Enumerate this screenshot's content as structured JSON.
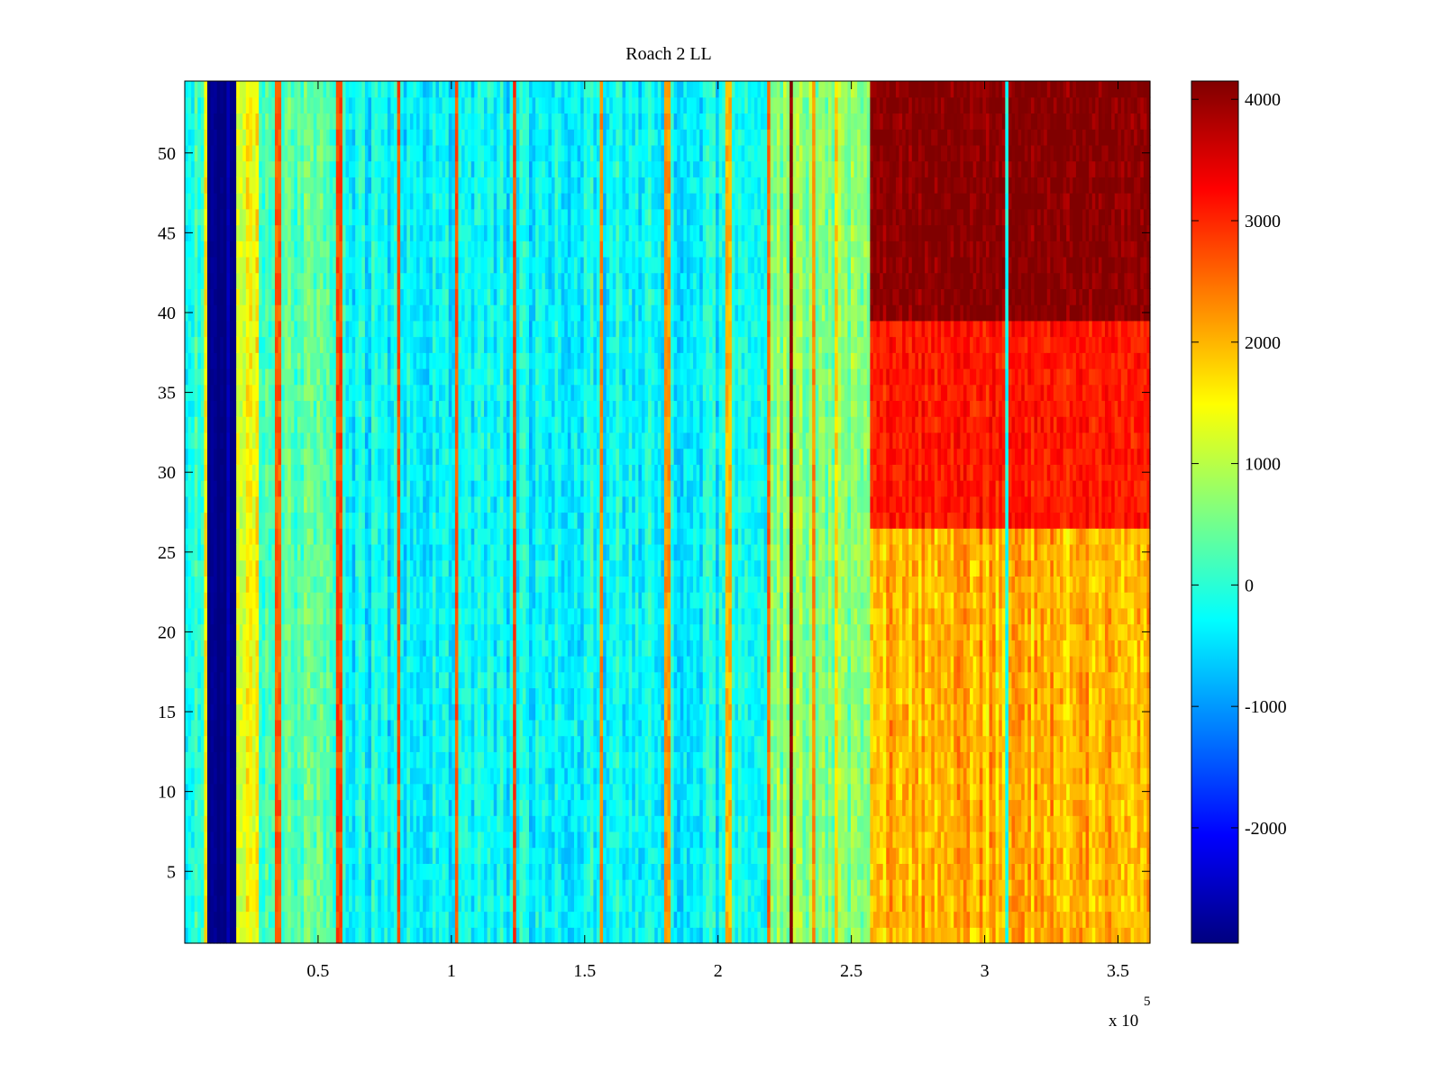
{
  "chart_data": {
    "type": "heatmap",
    "title": "Roach 2 LL",
    "xlabel": "",
    "ylabel": "",
    "x_exponent_label": "x 10",
    "x_exponent_power": "5",
    "xlim": [
      0,
      3.62
    ],
    "ylim": [
      0.5,
      54.5
    ],
    "x_ticks": [
      0.5,
      1,
      1.5,
      2,
      2.5,
      3,
      3.5
    ],
    "x_tick_labels": [
      "0.5",
      "1",
      "1.5",
      "2",
      "2.5",
      "3",
      "3.5"
    ],
    "y_ticks": [
      5,
      10,
      15,
      20,
      25,
      30,
      35,
      40,
      45,
      50
    ],
    "y_tick_labels": [
      "5",
      "10",
      "15",
      "20",
      "25",
      "30",
      "35",
      "40",
      "45",
      "50"
    ],
    "rows": 54,
    "colorbar": {
      "colormap": "jet",
      "clim": [
        -2950,
        4150
      ],
      "ticks": [
        -2000,
        -1000,
        0,
        1000,
        2000,
        3000,
        4000
      ],
      "tick_labels": [
        "-2000",
        "-1000",
        "0",
        "1000",
        "2000",
        "3000",
        "4000"
      ]
    },
    "regions": [
      {
        "x_range": [
          0,
          0.08
        ],
        "approx_value": 0
      },
      {
        "x_range": [
          0.08,
          0.19
        ],
        "approx_value": -2900
      },
      {
        "x_range": [
          0.19,
          0.28
        ],
        "approx_value": 1400
      },
      {
        "x_range": [
          0.28,
          0.6
        ],
        "approx_value": 300
      },
      {
        "x_range": [
          0.6,
          2.2
        ],
        "approx_value": -300
      },
      {
        "x_range": [
          2.2,
          2.57
        ],
        "approx_value": 600
      },
      {
        "x_range": [
          2.57,
          3.62
        ],
        "rows_40_54": 4100,
        "rows_27_39": 3100,
        "rows_1_26": 2000
      }
    ],
    "notable_columns": [
      {
        "x": 0.08,
        "approx_value": 1600
      },
      {
        "x": 0.35,
        "approx_value": 2600
      },
      {
        "x": 0.58,
        "approx_value": 2800
      },
      {
        "x": 0.8,
        "approx_value": 2700
      },
      {
        "x": 1.02,
        "approx_value": 2700
      },
      {
        "x": 1.24,
        "approx_value": 2800
      },
      {
        "x": 1.56,
        "approx_value": 2300
      },
      {
        "x": 1.81,
        "approx_value": 2200
      },
      {
        "x": 2.04,
        "approx_value": 2000
      },
      {
        "x": 2.19,
        "approx_value": 2600
      },
      {
        "x": 2.27,
        "approx_value": 4100
      },
      {
        "x": 2.36,
        "approx_value": 2300
      },
      {
        "x": 2.44,
        "approx_value": 1800
      },
      {
        "x": 3.08,
        "approx_value": -200
      }
    ]
  }
}
